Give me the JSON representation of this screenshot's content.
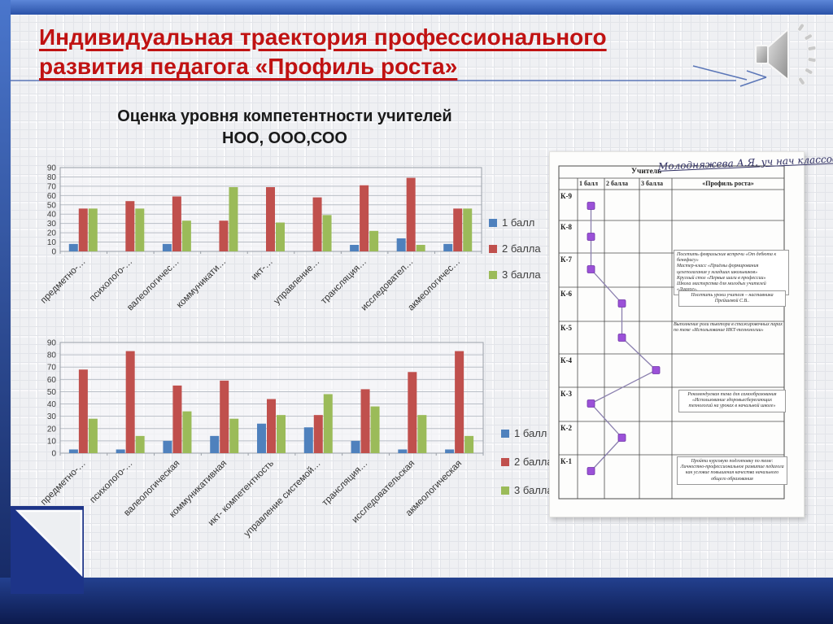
{
  "slide_title": {
    "lines": [
      "Индивидуальная траектория профессионального",
      "развития педагога «Профиль роста»"
    ],
    "color": "#c01212"
  },
  "chart_section": {
    "title_line1": "Оценка уровня компетентности учителей",
    "title_line2": "НОО, ООО,СОО"
  },
  "legend": {
    "items": [
      {
        "label": "1 балл",
        "color": "#4f81bd"
      },
      {
        "label": "2 балла",
        "color": "#c0504d"
      },
      {
        "label": "3 балла",
        "color": "#9bbb59"
      }
    ]
  },
  "chart_data": [
    {
      "type": "bar",
      "title": "Оценка уровня компетентности учителей НОО, ООО,СОО",
      "categories": [
        "предметно-…",
        "психолого-…",
        "валеологичес…",
        "коммуникати…",
        "икт-…",
        "управление…",
        "трансляция…",
        "исследовател…",
        "акмеологичес…"
      ],
      "series": [
        {
          "name": "1 балл",
          "color": "#4f81bd",
          "values": [
            8,
            0,
            8,
            0,
            0,
            0,
            7,
            14,
            8
          ]
        },
        {
          "name": "2 балла",
          "color": "#c0504d",
          "values": [
            46,
            54,
            59,
            33,
            69,
            58,
            71,
            79,
            46
          ]
        },
        {
          "name": "3 балла",
          "color": "#9bbb59",
          "values": [
            46,
            46,
            33,
            69,
            31,
            39,
            22,
            7,
            46
          ]
        }
      ],
      "ylim": [
        0,
        90
      ],
      "ytick": 10,
      "grid": true,
      "legend_position": "right"
    },
    {
      "type": "bar",
      "title": "",
      "categories": [
        "предметно-…",
        "психолого-…",
        "валеологическая",
        "коммуникативная",
        "икт- компетентность",
        "управление системой…",
        "трансляция…",
        "исследовательская",
        "акмеологическая"
      ],
      "series": [
        {
          "name": "1 балл",
          "color": "#4f81bd",
          "values": [
            3,
            3,
            10,
            14,
            24,
            21,
            10,
            3,
            3
          ]
        },
        {
          "name": "2 балла",
          "color": "#c0504d",
          "values": [
            68,
            83,
            55,
            59,
            44,
            31,
            52,
            66,
            83
          ]
        },
        {
          "name": "3 балла",
          "color": "#9bbb59",
          "values": [
            28,
            14,
            34,
            28,
            31,
            48,
            38,
            31,
            14
          ]
        }
      ],
      "ylim": [
        0,
        90
      ],
      "ytick": 10,
      "grid": true,
      "legend_position": "right"
    }
  ],
  "document": {
    "teacher_label": "Учитель",
    "teacher_name": "Молодняжева А.Я. уч нач классов",
    "score_columns": [
      "1 балл",
      "2 балла",
      "3 балла"
    ],
    "profile_column": "«Профиль роста»",
    "rows": [
      {
        "label": "К-9",
        "mark": 1
      },
      {
        "label": "К-8",
        "mark": 1
      },
      {
        "label": "К-7",
        "mark": 1
      },
      {
        "label": "К-6",
        "mark": 2
      },
      {
        "label": "К-5",
        "mark": 2
      },
      {
        "label": "К-4",
        "mark": 3
      },
      {
        "label": "К-3",
        "mark": 1
      },
      {
        "label": "К-2",
        "mark": 2
      },
      {
        "label": "К-1",
        "mark": 1
      }
    ],
    "notes": [
      {
        "row": "К-7",
        "lines": [
          "Посетить февральские встречи «От дебюта к бенефису»",
          "Мастер-класс «Приёмы формирования целеполагания у младших школьников»",
          "Круглый стол «Первые шаги в профессии»",
          "Школа мастерства для молодых учителей «Диалог»."
        ]
      },
      {
        "row": "К-6",
        "lines": [
          "Посетить уроки учителя – наставника Прейшевой С.В.."
        ]
      },
      {
        "row": "К-5",
        "lines": [
          "Выполнение роли тьютора в стажировочных парах по теме «Использование ИКТ-технологии»"
        ]
      },
      {
        "row": "К-3",
        "lines": [
          "Рекомендуемая тема для самообразования «Использование здоровьесберегающих технологий на уроках в начальной школе»"
        ]
      },
      {
        "row": "К-1",
        "lines": [
          "Пройти курсовую подготовку по теме: Личностно-профессиональное развитие педагога как условие повышения качества начального общего образования"
        ]
      }
    ],
    "marker_color": "#9b51d8"
  },
  "icons": {
    "speaker": "speaker-sound-icon"
  },
  "colors": {
    "frame_top": "#3f6dc6",
    "frame_bottom": "#0f1f5c",
    "title_red": "#c01212",
    "background_grid": "#eef0f3"
  }
}
